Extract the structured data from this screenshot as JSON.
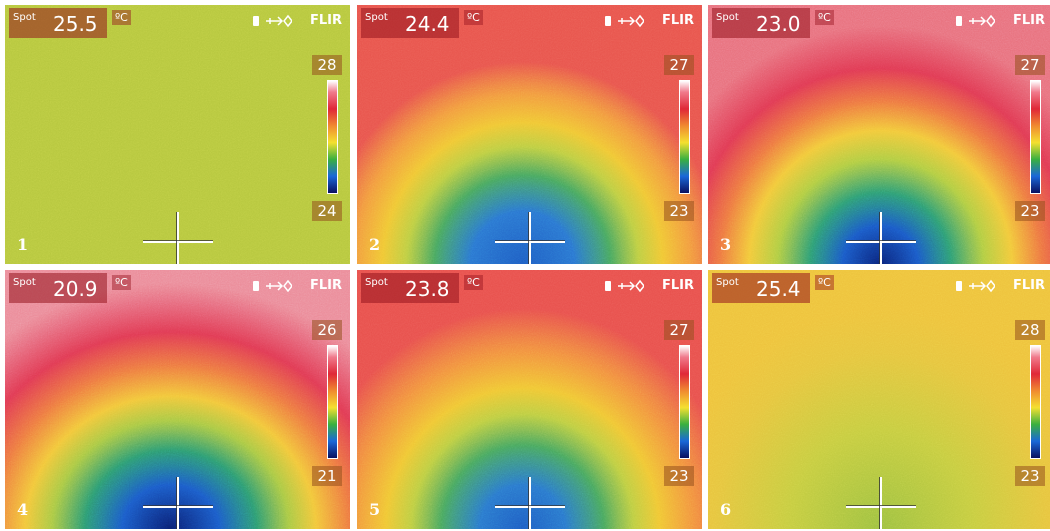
{
  "panels": [
    {
      "index": "1",
      "spot_label": "Spot",
      "spot_value": "25.5",
      "unit": "ºC",
      "brand": "FLIR",
      "scale_max": "28",
      "scale_min": "24"
    },
    {
      "index": "2",
      "spot_label": "Spot",
      "spot_value": "24.4",
      "unit": "ºC",
      "brand": "FLIR",
      "scale_max": "27",
      "scale_min": "23"
    },
    {
      "index": "3",
      "spot_label": "Spot",
      "spot_value": "23.0",
      "unit": "ºC",
      "brand": "FLIR",
      "scale_max": "27",
      "scale_min": "23"
    },
    {
      "index": "4",
      "spot_label": "Spot",
      "spot_value": "20.9",
      "unit": "ºC",
      "brand": "FLIR",
      "scale_max": "26",
      "scale_min": "21"
    },
    {
      "index": "5",
      "spot_label": "Spot",
      "spot_value": "23.8",
      "unit": "ºC",
      "brand": "FLIR",
      "scale_max": "27",
      "scale_min": "23"
    },
    {
      "index": "6",
      "spot_label": "Spot",
      "spot_value": "25.4",
      "unit": "ºC",
      "brand": "FLIR",
      "scale_max": "28",
      "scale_min": "23"
    }
  ]
}
